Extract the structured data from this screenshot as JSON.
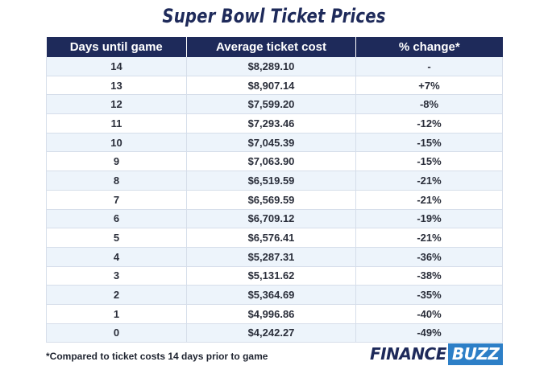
{
  "title": "Super Bowl Ticket Prices",
  "footnote": "*Compared to ticket costs 14 days prior to game",
  "logo": {
    "part1": "FINANCE",
    "part2": "BUZZ"
  },
  "colors": {
    "header_bg": "#1e2a5a",
    "stripe": "#edf4fb",
    "logo_accent": "#2d7fc7"
  },
  "chart_data": {
    "type": "table",
    "title": "Super Bowl Ticket Prices",
    "columns": [
      "Days until game",
      "Average ticket cost",
      "% change*"
    ],
    "rows": [
      [
        "14",
        "$8,289.10",
        "-"
      ],
      [
        "13",
        "$8,907.14",
        "+7%"
      ],
      [
        "12",
        "$7,599.20",
        "-8%"
      ],
      [
        "11",
        "$7,293.46",
        "-12%"
      ],
      [
        "10",
        "$7,045.39",
        "-15%"
      ],
      [
        "9",
        "$7,063.90",
        "-15%"
      ],
      [
        "8",
        "$6,519.59",
        "-21%"
      ],
      [
        "7",
        "$6,569.59",
        "-21%"
      ],
      [
        "6",
        "$6,709.12",
        "-19%"
      ],
      [
        "5",
        "$6,576.41",
        "-21%"
      ],
      [
        "4",
        "$5,287.31",
        "-36%"
      ],
      [
        "3",
        "$5,131.62",
        "-38%"
      ],
      [
        "2",
        "$5,364.69",
        "-35%"
      ],
      [
        "1",
        "$4,996.86",
        "-40%"
      ],
      [
        "0",
        "$4,242.27",
        "-49%"
      ]
    ]
  }
}
